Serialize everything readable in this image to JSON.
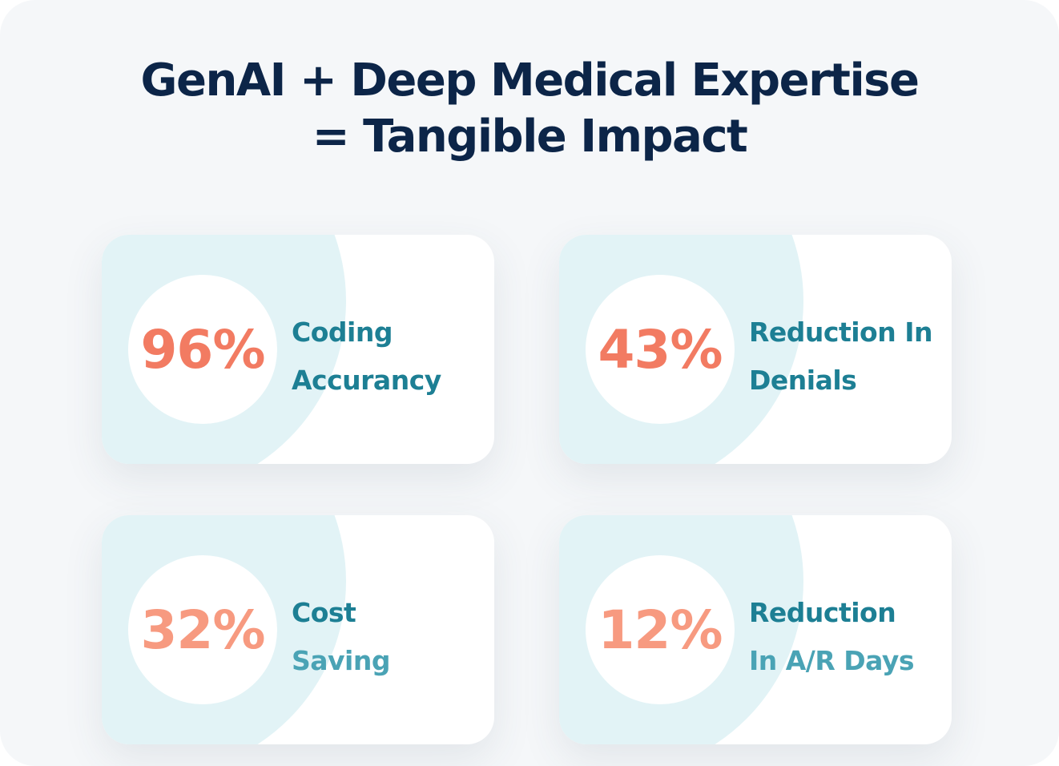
{
  "headline": {
    "line1": "GenAI + Deep Medical Expertise",
    "line2": "= Tangible Impact"
  },
  "colors": {
    "headline": "#0c2548",
    "value_strong": "#f27b62",
    "value_soft": "#f79a80",
    "label_strong": "#1d7f94",
    "label_soft": "#4aa3b5",
    "halo": "#e2f3f6"
  },
  "stats": [
    {
      "value": "96%",
      "label_line1": "Coding",
      "label_line2": "Accurancy"
    },
    {
      "value": "43%",
      "label_line1": "Reduction In",
      "label_line2": "Denials"
    },
    {
      "value": "32%",
      "label_line1": "Cost",
      "label_line2": "Saving"
    },
    {
      "value": "12%",
      "label_line1": "Reduction",
      "label_line2": "In A/R Days"
    }
  ]
}
